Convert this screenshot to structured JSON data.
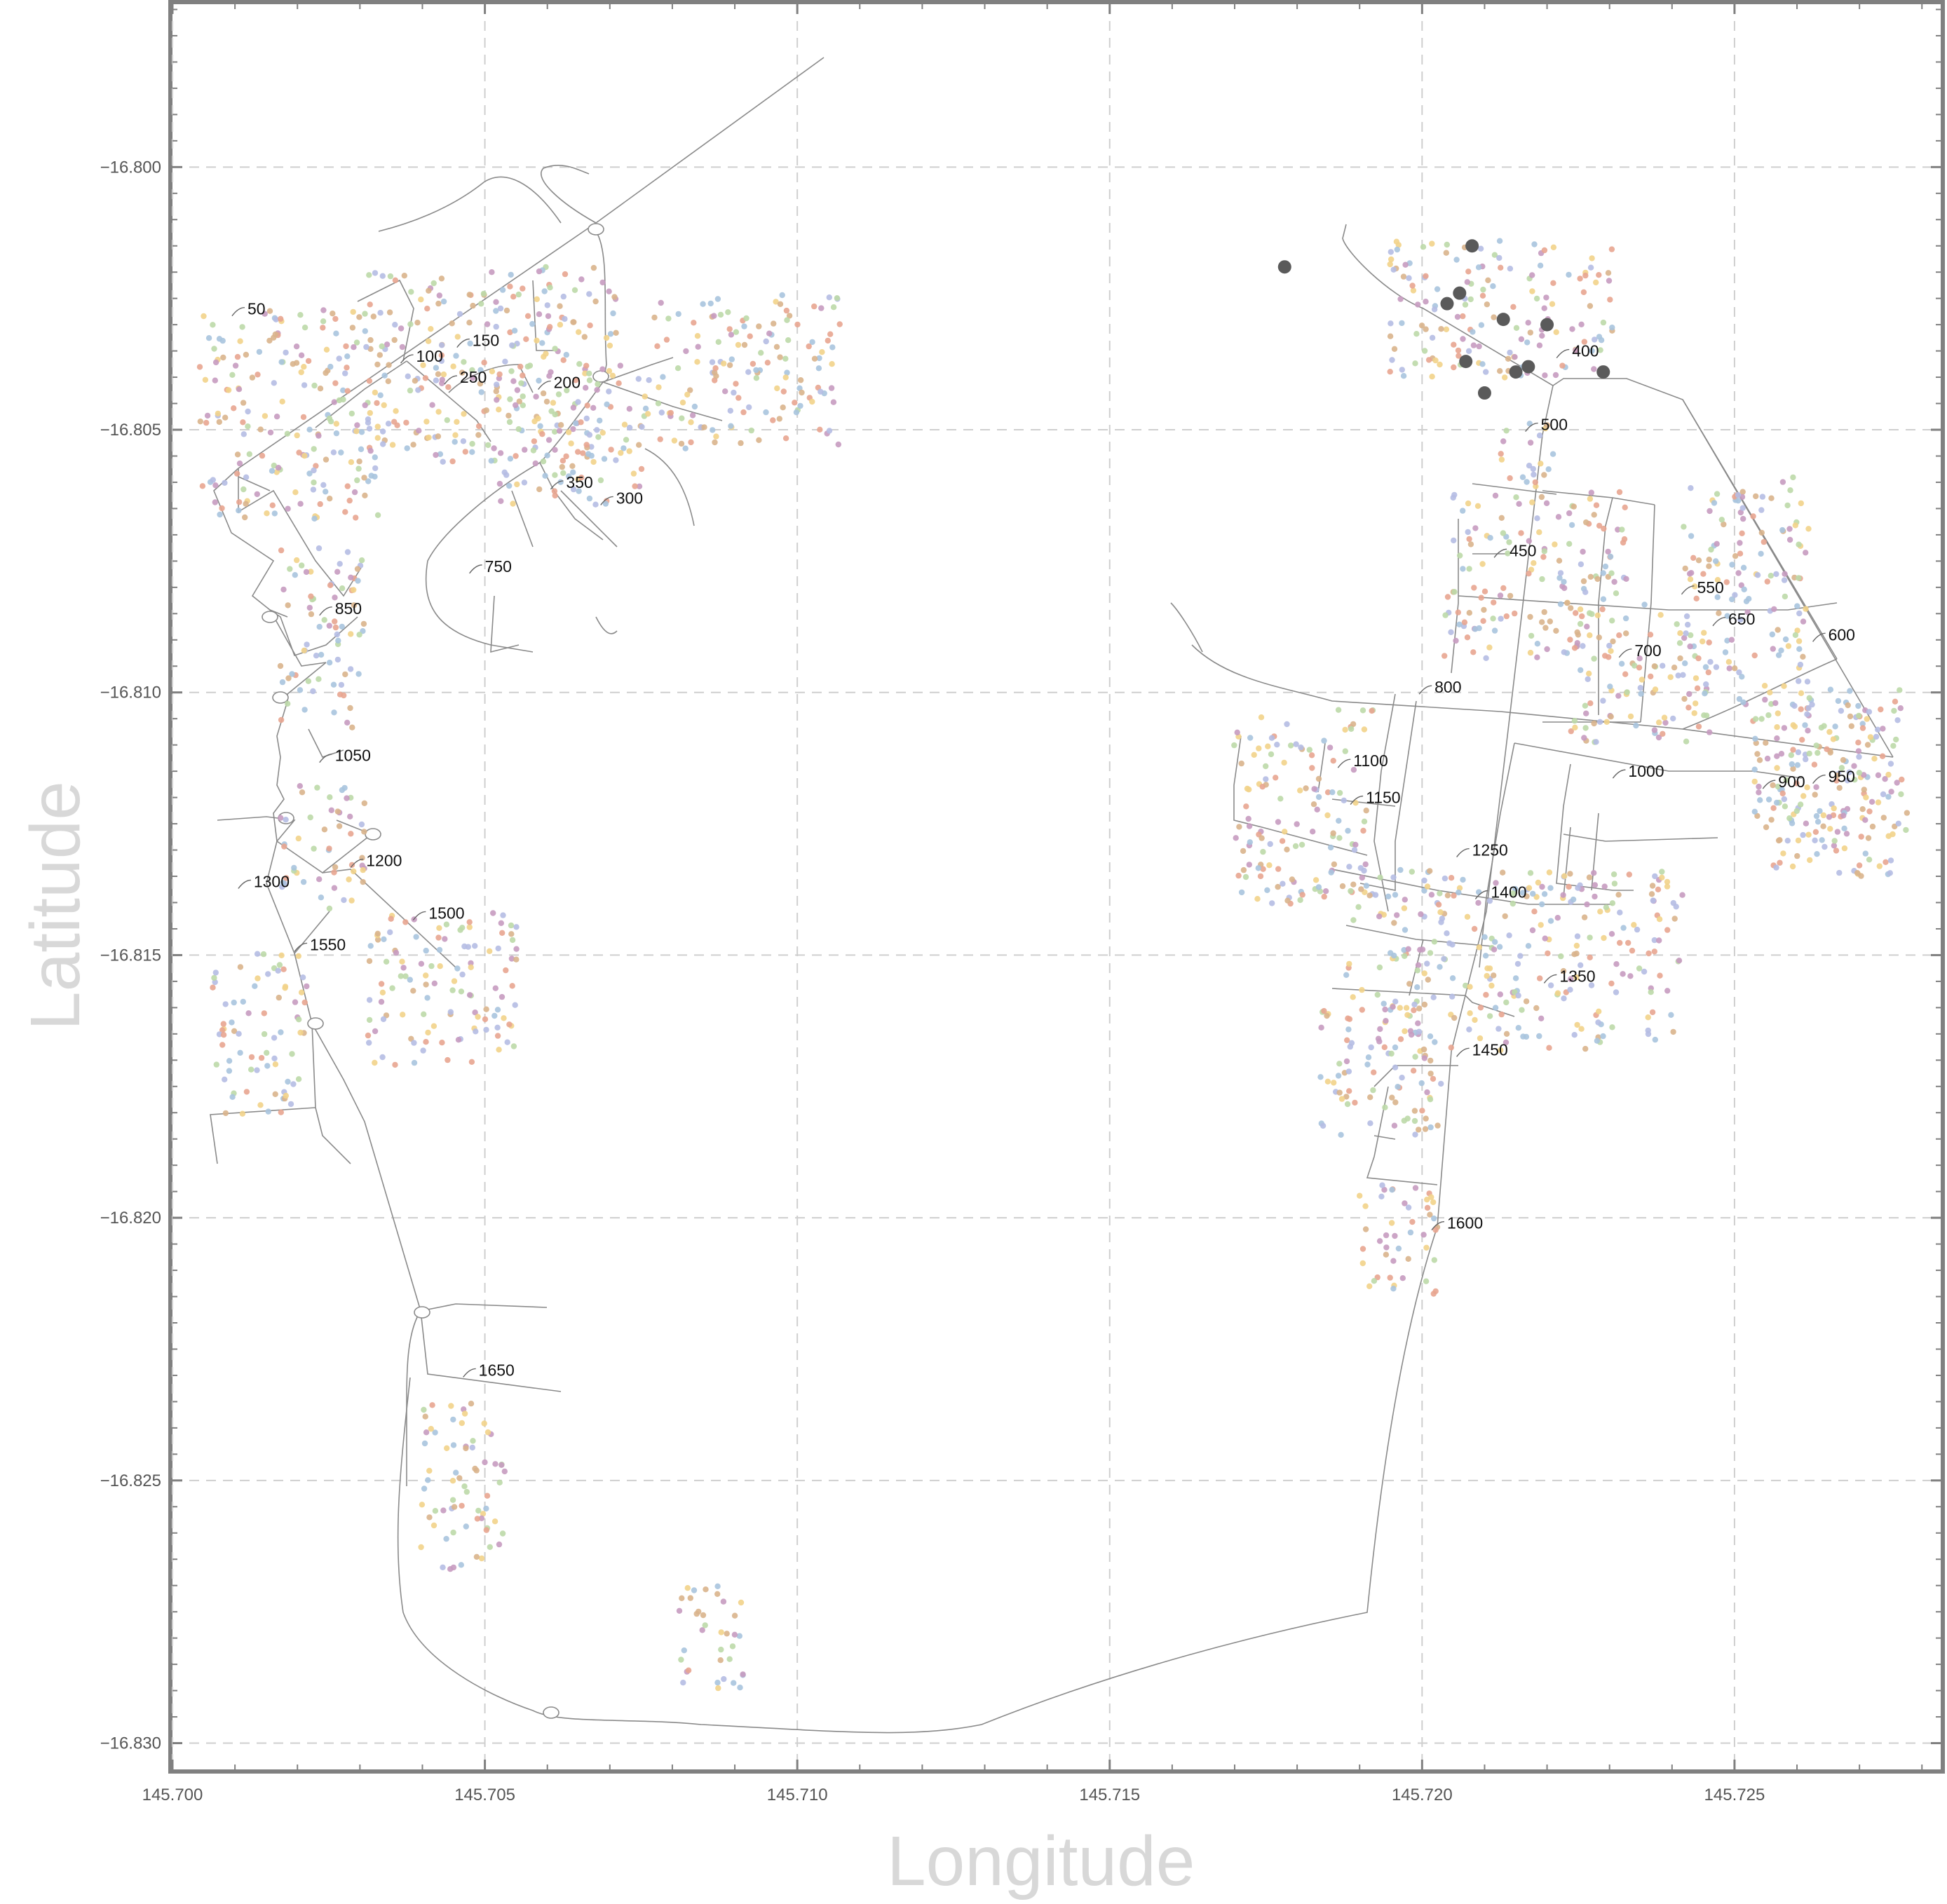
{
  "axes": {
    "xlabel": "Longitude",
    "ylabel": "Latitude",
    "xlim": [
      145.7,
      145.7283
    ],
    "ylim": [
      -16.8305,
      -16.7969
    ],
    "x_ticks": [
      "145.700",
      "145.705",
      "145.710",
      "145.715",
      "145.720",
      "145.725"
    ],
    "y_ticks": [
      "−16.800",
      "−16.805",
      "−16.810",
      "−16.815",
      "−16.820",
      "−16.825",
      "−16.830"
    ],
    "grid": true,
    "grid_style": "dashed"
  },
  "colors": {
    "frame": "#808080",
    "road": "#8a8a8a",
    "grid": "#cfcfcf",
    "axis_title": "#d8d8d8",
    "marker": "#5a5a5a",
    "point_palette": [
      "#e8a590",
      "#b5bde3",
      "#f2d38a",
      "#bcd9a8",
      "#c79bc0",
      "#d9b48c",
      "#a9c4de"
    ]
  },
  "chart_data": {
    "type": "scatter",
    "title": "",
    "xlabel": "Longitude",
    "ylabel": "Latitude",
    "xlim": [
      145.7,
      145.7283
    ],
    "ylim": [
      -16.8305,
      -16.7969
    ],
    "labels": [
      {
        "text": "50",
        "lon": 145.7012,
        "lat": -16.8027
      },
      {
        "text": "100",
        "lon": 145.7039,
        "lat": -16.8036
      },
      {
        "text": "150",
        "lon": 145.7048,
        "lat": -16.8033
      },
      {
        "text": "200",
        "lon": 145.7061,
        "lat": -16.8041
      },
      {
        "text": "250",
        "lon": 145.7046,
        "lat": -16.804
      },
      {
        "text": "300",
        "lon": 145.7071,
        "lat": -16.8063
      },
      {
        "text": "350",
        "lon": 145.7063,
        "lat": -16.806
      },
      {
        "text": "400",
        "lon": 145.7224,
        "lat": -16.8035
      },
      {
        "text": "450",
        "lon": 145.7214,
        "lat": -16.8073
      },
      {
        "text": "500",
        "lon": 145.7219,
        "lat": -16.8049
      },
      {
        "text": "550",
        "lon": 145.7244,
        "lat": -16.808
      },
      {
        "text": "600",
        "lon": 145.7265,
        "lat": -16.8089
      },
      {
        "text": "650",
        "lon": 145.7249,
        "lat": -16.8086
      },
      {
        "text": "700",
        "lon": 145.7234,
        "lat": -16.8092
      },
      {
        "text": "750",
        "lon": 145.705,
        "lat": -16.8076
      },
      {
        "text": "800",
        "lon": 145.7202,
        "lat": -16.8099
      },
      {
        "text": "850",
        "lon": 145.7026,
        "lat": -16.8084
      },
      {
        "text": "900",
        "lon": 145.7257,
        "lat": -16.8117
      },
      {
        "text": "950",
        "lon": 145.7265,
        "lat": -16.8116
      },
      {
        "text": "1000",
        "lon": 145.7233,
        "lat": -16.8115
      },
      {
        "text": "1050",
        "lon": 145.7026,
        "lat": -16.8112
      },
      {
        "text": "1100",
        "lon": 145.7189,
        "lat": -16.8113
      },
      {
        "text": "1150",
        "lon": 145.7191,
        "lat": -16.812
      },
      {
        "text": "1200",
        "lon": 145.7031,
        "lat": -16.8132
      },
      {
        "text": "1250",
        "lon": 145.7208,
        "lat": -16.813
      },
      {
        "text": "1300",
        "lon": 145.7013,
        "lat": -16.8136
      },
      {
        "text": "1350",
        "lon": 145.7222,
        "lat": -16.8154
      },
      {
        "text": "1400",
        "lon": 145.7211,
        "lat": -16.8138
      },
      {
        "text": "1450",
        "lon": 145.7208,
        "lat": -16.8168
      },
      {
        "text": "1500",
        "lon": 145.7041,
        "lat": -16.8142
      },
      {
        "text": "1550",
        "lon": 145.7022,
        "lat": -16.8148
      },
      {
        "text": "1600",
        "lon": 145.7204,
        "lat": -16.8201
      },
      {
        "text": "1650",
        "lon": 145.7049,
        "lat": -16.8229
      }
    ],
    "markers": [
      {
        "lon": 145.7178,
        "lat": -16.8019
      },
      {
        "lon": 145.7208,
        "lat": -16.8015
      },
      {
        "lon": 145.7204,
        "lat": -16.8026
      },
      {
        "lon": 145.7206,
        "lat": -16.8024
      },
      {
        "lon": 145.7213,
        "lat": -16.8029
      },
      {
        "lon": 145.722,
        "lat": -16.803
      },
      {
        "lon": 145.7207,
        "lat": -16.8037
      },
      {
        "lon": 145.7215,
        "lat": -16.8039
      },
      {
        "lon": 145.7217,
        "lat": -16.8038
      },
      {
        "lon": 145.721,
        "lat": -16.8043
      },
      {
        "lon": 145.7229,
        "lat": -16.8039
      }
    ]
  }
}
